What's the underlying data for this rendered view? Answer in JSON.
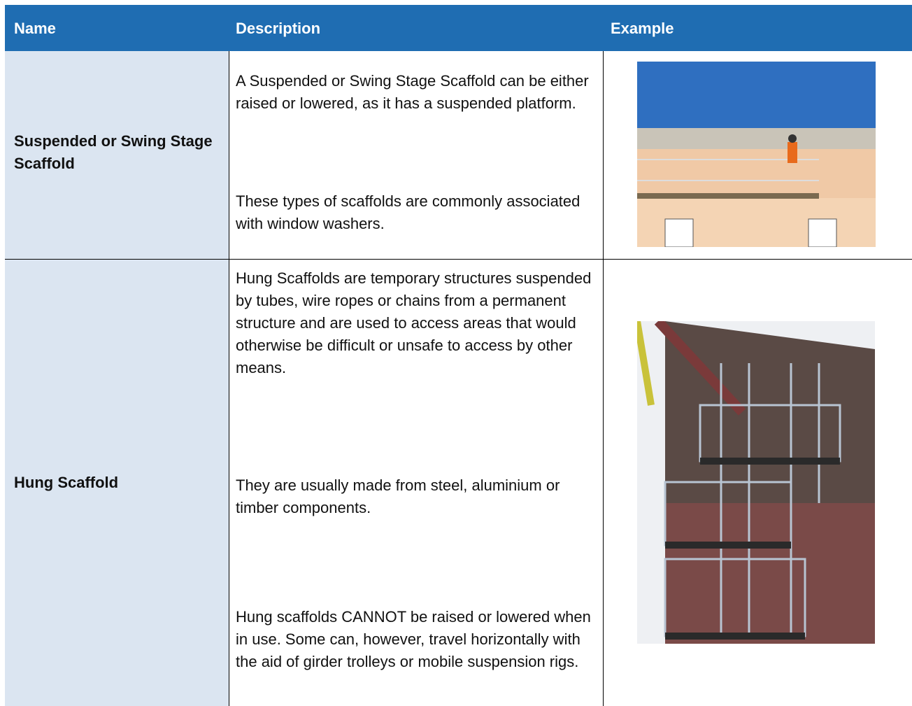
{
  "table": {
    "header": [
      "Name",
      "Description",
      "Example"
    ],
    "rows": [
      {
        "name": "Suspended or Swing Stage Scaffold",
        "description": [
          "A Suspended or Swing Stage Scaffold can be either raised or lowered, as it has a suspended platform.",
          "These types of scaffolds are commonly associated with window washers."
        ]
      },
      {
        "name": "Hung Scaffold",
        "description": [
          "Hung Scaffolds are temporary structures suspended by tubes, wire ropes or chains from a permanent structure and are used to access areas that would otherwise be difficult or unsafe to access by other means.",
          "They are usually made from steel, aluminium or timber components.",
          "Hung scaffolds CANNOT be raised or lowered when in use. Some can, however, travel horizontally with the aid of girder trolleys or mobile suspension rigs."
        ]
      }
    ]
  }
}
